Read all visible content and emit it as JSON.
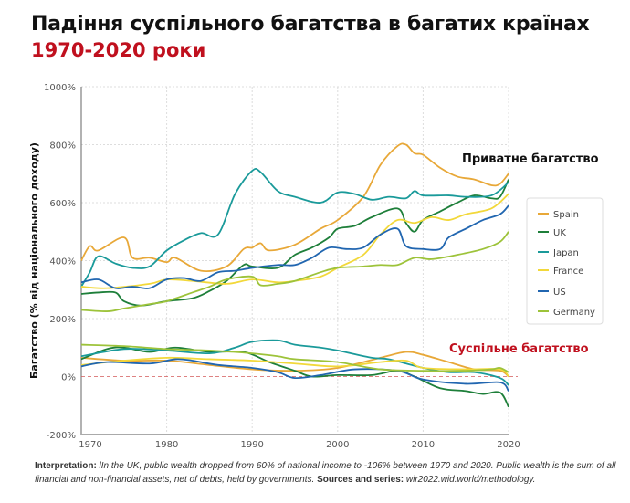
{
  "chart_data": {
    "type": "line",
    "title": "Падіння суспільного багатства в багатих країнах",
    "subtitle": "1970-2020 роки",
    "ylabel": "Багатство (% від національного доходу)",
    "xlabel": "",
    "xlim": [
      1970,
      2020
    ],
    "ylim": [
      -200,
      1000
    ],
    "xticks": [
      "1970",
      "1980",
      "1990",
      "2000",
      "2010",
      "2020"
    ],
    "yticks": [
      "1000%",
      "800%",
      "600%",
      "400%",
      "200%",
      "0%",
      "-200%"
    ],
    "ytick_values": [
      1000,
      800,
      600,
      400,
      200,
      0,
      -200
    ],
    "xtick_values": [
      1970,
      1980,
      1990,
      2000,
      2010,
      2020
    ],
    "grid": true,
    "legend_position": "right",
    "annotations": {
      "private": "Приватне багатство",
      "public": "Суспільне багатство"
    },
    "series": [
      {
        "name": "Spain",
        "color": "#E8A838",
        "private": [
          [
            1970,
            400
          ],
          [
            1971,
            450
          ],
          [
            1972,
            435
          ],
          [
            1975,
            480
          ],
          [
            1976,
            410
          ],
          [
            1978,
            410
          ],
          [
            1980,
            395
          ],
          [
            1981,
            410
          ],
          [
            1984,
            365
          ],
          [
            1987,
            380
          ],
          [
            1989,
            440
          ],
          [
            1990,
            445
          ],
          [
            1991,
            460
          ],
          [
            1992,
            435
          ],
          [
            1995,
            455
          ],
          [
            1998,
            510
          ],
          [
            2000,
            540
          ],
          [
            2003,
            620
          ],
          [
            2005,
            730
          ],
          [
            2007,
            795
          ],
          [
            2008,
            800
          ],
          [
            2009,
            770
          ],
          [
            2010,
            765
          ],
          [
            2012,
            720
          ],
          [
            2014,
            690
          ],
          [
            2016,
            680
          ],
          [
            2018,
            660
          ],
          [
            2019,
            665
          ],
          [
            2020,
            700
          ]
        ],
        "public": [
          [
            1970,
            65
          ],
          [
            1975,
            55
          ],
          [
            1980,
            55
          ],
          [
            1985,
            40
          ],
          [
            1990,
            25
          ],
          [
            1995,
            20
          ],
          [
            2000,
            30
          ],
          [
            2005,
            65
          ],
          [
            2008,
            85
          ],
          [
            2010,
            75
          ],
          [
            2013,
            50
          ],
          [
            2016,
            25
          ],
          [
            2019,
            20
          ],
          [
            2020,
            0
          ]
        ]
      },
      {
        "name": "UK",
        "color": "#1E7F3A",
        "private": [
          [
            1970,
            285
          ],
          [
            1972,
            290
          ],
          [
            1974,
            290
          ],
          [
            1975,
            260
          ],
          [
            1977,
            245
          ],
          [
            1980,
            260
          ],
          [
            1983,
            270
          ],
          [
            1985,
            295
          ],
          [
            1987,
            330
          ],
          [
            1989,
            385
          ],
          [
            1990,
            380
          ],
          [
            1993,
            375
          ],
          [
            1995,
            420
          ],
          [
            1997,
            445
          ],
          [
            1999,
            480
          ],
          [
            2000,
            510
          ],
          [
            2002,
            520
          ],
          [
            2004,
            550
          ],
          [
            2007,
            580
          ],
          [
            2008,
            530
          ],
          [
            2009,
            500
          ],
          [
            2010,
            540
          ],
          [
            2012,
            570
          ],
          [
            2014,
            600
          ],
          [
            2016,
            625
          ],
          [
            2018,
            615
          ],
          [
            2019,
            620
          ],
          [
            2020,
            680
          ]
        ],
        "public": [
          [
            1970,
            60
          ],
          [
            1973,
            95
          ],
          [
            1975,
            100
          ],
          [
            1978,
            85
          ],
          [
            1981,
            100
          ],
          [
            1985,
            85
          ],
          [
            1989,
            85
          ],
          [
            1992,
            50
          ],
          [
            1995,
            20
          ],
          [
            1997,
            0
          ],
          [
            2000,
            5
          ],
          [
            2004,
            5
          ],
          [
            2007,
            20
          ],
          [
            2009,
            0
          ],
          [
            2012,
            -40
          ],
          [
            2015,
            -50
          ],
          [
            2017,
            -60
          ],
          [
            2019,
            -55
          ],
          [
            2020,
            -105
          ]
        ]
      },
      {
        "name": "Japan",
        "color": "#1A9A9A",
        "private": [
          [
            1970,
            310
          ],
          [
            1971,
            360
          ],
          [
            1972,
            415
          ],
          [
            1974,
            390
          ],
          [
            1976,
            375
          ],
          [
            1978,
            380
          ],
          [
            1980,
            435
          ],
          [
            1982,
            470
          ],
          [
            1984,
            495
          ],
          [
            1986,
            490
          ],
          [
            1988,
            630
          ],
          [
            1990,
            710
          ],
          [
            1991,
            705
          ],
          [
            1993,
            640
          ],
          [
            1995,
            620
          ],
          [
            1998,
            600
          ],
          [
            2000,
            635
          ],
          [
            2002,
            630
          ],
          [
            2004,
            610
          ],
          [
            2006,
            620
          ],
          [
            2008,
            615
          ],
          [
            2009,
            640
          ],
          [
            2010,
            625
          ],
          [
            2013,
            625
          ],
          [
            2015,
            620
          ],
          [
            2018,
            625
          ],
          [
            2020,
            670
          ]
        ],
        "public": [
          [
            1970,
            70
          ],
          [
            1975,
            95
          ],
          [
            1980,
            90
          ],
          [
            1985,
            80
          ],
          [
            1988,
            100
          ],
          [
            1990,
            120
          ],
          [
            1993,
            125
          ],
          [
            1995,
            110
          ],
          [
            1998,
            100
          ],
          [
            2000,
            90
          ],
          [
            2004,
            65
          ],
          [
            2006,
            60
          ],
          [
            2010,
            30
          ],
          [
            2013,
            15
          ],
          [
            2016,
            15
          ],
          [
            2019,
            -5
          ],
          [
            2020,
            -30
          ]
        ]
      },
      {
        "name": "France",
        "color": "#F2D83A",
        "private": [
          [
            1970,
            310
          ],
          [
            1973,
            305
          ],
          [
            1978,
            320
          ],
          [
            1980,
            335
          ],
          [
            1983,
            330
          ],
          [
            1987,
            320
          ],
          [
            1990,
            335
          ],
          [
            1993,
            325
          ],
          [
            1995,
            330
          ],
          [
            1998,
            345
          ],
          [
            2000,
            375
          ],
          [
            2003,
            420
          ],
          [
            2005,
            490
          ],
          [
            2007,
            540
          ],
          [
            2009,
            530
          ],
          [
            2011,
            550
          ],
          [
            2013,
            540
          ],
          [
            2015,
            560
          ],
          [
            2018,
            580
          ],
          [
            2020,
            630
          ]
        ],
        "public": [
          [
            1970,
            40
          ],
          [
            1975,
            55
          ],
          [
            1980,
            65
          ],
          [
            1985,
            60
          ],
          [
            1990,
            55
          ],
          [
            1995,
            45
          ],
          [
            2000,
            35
          ],
          [
            2005,
            50
          ],
          [
            2008,
            55
          ],
          [
            2010,
            30
          ],
          [
            2015,
            25
          ],
          [
            2019,
            25
          ],
          [
            2020,
            0
          ]
        ]
      },
      {
        "name": "US",
        "color": "#2166B0",
        "private": [
          [
            1970,
            325
          ],
          [
            1972,
            335
          ],
          [
            1974,
            305
          ],
          [
            1976,
            310
          ],
          [
            1978,
            305
          ],
          [
            1980,
            335
          ],
          [
            1982,
            340
          ],
          [
            1984,
            330
          ],
          [
            1986,
            360
          ],
          [
            1988,
            365
          ],
          [
            1990,
            375
          ],
          [
            1993,
            385
          ],
          [
            1995,
            385
          ],
          [
            1997,
            410
          ],
          [
            1999,
            445
          ],
          [
            2001,
            440
          ],
          [
            2003,
            445
          ],
          [
            2005,
            490
          ],
          [
            2007,
            510
          ],
          [
            2008,
            450
          ],
          [
            2010,
            440
          ],
          [
            2012,
            440
          ],
          [
            2013,
            480
          ],
          [
            2015,
            510
          ],
          [
            2017,
            540
          ],
          [
            2019,
            560
          ],
          [
            2020,
            590
          ]
        ],
        "public": [
          [
            1970,
            35
          ],
          [
            1973,
            50
          ],
          [
            1978,
            45
          ],
          [
            1981,
            60
          ],
          [
            1983,
            55
          ],
          [
            1986,
            40
          ],
          [
            1990,
            30
          ],
          [
            1993,
            15
          ],
          [
            1995,
            -5
          ],
          [
            1998,
            5
          ],
          [
            2002,
            25
          ],
          [
            2007,
            20
          ],
          [
            2010,
            -10
          ],
          [
            2015,
            -25
          ],
          [
            2019,
            -20
          ],
          [
            2020,
            -50
          ]
        ]
      },
      {
        "name": "Germany",
        "color": "#9DC33A",
        "private": [
          [
            1970,
            230
          ],
          [
            1973,
            225
          ],
          [
            1975,
            235
          ],
          [
            1978,
            250
          ],
          [
            1980,
            260
          ],
          [
            1983,
            290
          ],
          [
            1985,
            310
          ],
          [
            1987,
            335
          ],
          [
            1990,
            345
          ],
          [
            1991,
            315
          ],
          [
            1993,
            320
          ],
          [
            1995,
            330
          ],
          [
            1998,
            360
          ],
          [
            2000,
            375
          ],
          [
            2003,
            380
          ],
          [
            2005,
            385
          ],
          [
            2007,
            385
          ],
          [
            2009,
            410
          ],
          [
            2011,
            405
          ],
          [
            2014,
            420
          ],
          [
            2017,
            440
          ],
          [
            2019,
            465
          ],
          [
            2020,
            500
          ]
        ],
        "public": [
          [
            1970,
            110
          ],
          [
            1975,
            105
          ],
          [
            1980,
            95
          ],
          [
            1985,
            90
          ],
          [
            1990,
            80
          ],
          [
            1993,
            70
          ],
          [
            1995,
            60
          ],
          [
            2000,
            50
          ],
          [
            2005,
            25
          ],
          [
            2010,
            20
          ],
          [
            2015,
            20
          ],
          [
            2018,
            25
          ],
          [
            2019,
            30
          ],
          [
            2020,
            15
          ]
        ]
      }
    ]
  },
  "note": {
    "interp_label": "Interpretation:",
    "interp_text": " lIn the UK, public wealth dropped from 60% of national income to -106% between 1970 and 2020. Public wealth is the sum of all financial and non-financial assets, net of debts, held by governments. ",
    "sources_label": "Sources and series:",
    "sources_text": " wir2022.wid.world/methodology."
  }
}
